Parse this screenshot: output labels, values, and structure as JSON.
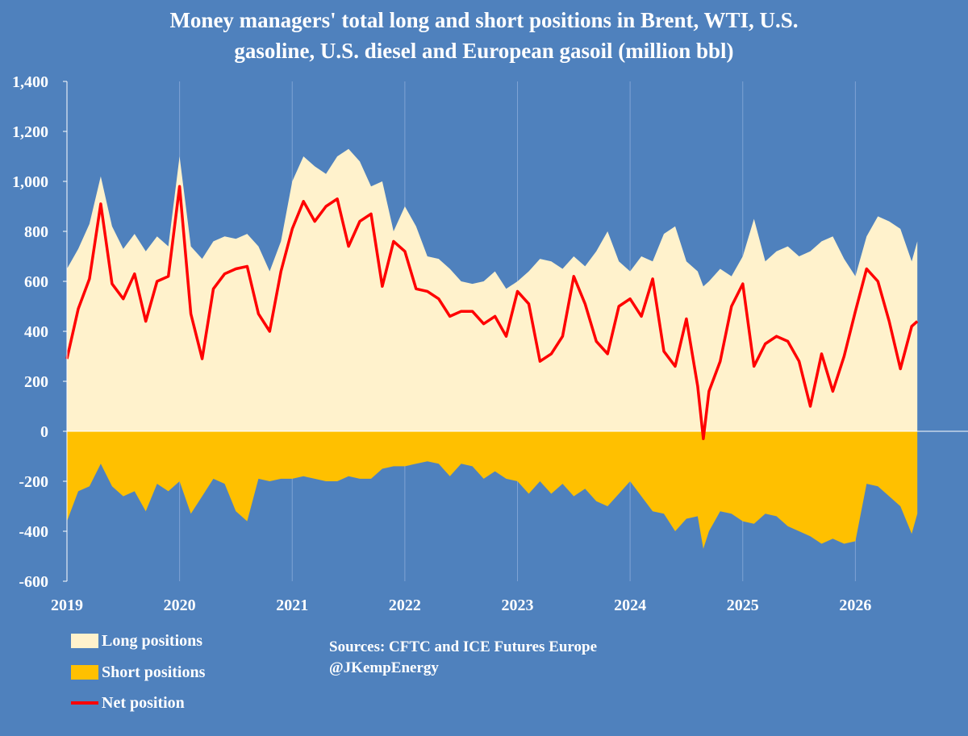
{
  "title_line1": "Money managers' total long and short positions in Brent, WTI, U.S.",
  "title_line2": "gasoline, U.S. diesel and European gasoil  (million bbl)",
  "legend": {
    "long_label": "Long positions",
    "short_label": "Short positions",
    "net_label": "Net position"
  },
  "source": {
    "line1": "Sources: CFTC and ICE Futures Europe",
    "line2": "@JKempEnergy"
  },
  "colors": {
    "background": "#4f81bd",
    "long": "#fff2cc",
    "short": "#ffc000",
    "net": "#ff0000",
    "grid": "#7fa3d4",
    "text": "#ffffff"
  },
  "chart_data": {
    "type": "area",
    "xlim": [
      2019,
      2027
    ],
    "ylim": [
      -600,
      1400
    ],
    "y_ticks": [
      1400,
      1200,
      1000,
      800,
      600,
      400,
      200,
      0,
      -200,
      -400,
      -600
    ],
    "y_tick_labels": [
      "1,400",
      "1,200",
      "1,000",
      "800",
      "600",
      "400",
      "200",
      "0",
      "-200",
      "-400",
      "-600"
    ],
    "x_ticks": [
      2019,
      2020,
      2021,
      2022,
      2023,
      2024,
      2025,
      2026
    ],
    "x_tick_labels": [
      "2019",
      "2020",
      "2021",
      "2022",
      "2023",
      "2024",
      "2025",
      "2026"
    ],
    "grid": "vertical only",
    "x": [
      2019.0,
      2019.1,
      2019.2,
      2019.3,
      2019.4,
      2019.5,
      2019.6,
      2019.7,
      2019.8,
      2019.9,
      2020.0,
      2020.1,
      2020.2,
      2020.3,
      2020.4,
      2020.5,
      2020.6,
      2020.7,
      2020.8,
      2020.9,
      2021.0,
      2021.1,
      2021.2,
      2021.3,
      2021.4,
      2021.5,
      2021.6,
      2021.7,
      2021.8,
      2021.9,
      2022.0,
      2022.1,
      2022.2,
      2022.3,
      2022.4,
      2022.5,
      2022.6,
      2022.7,
      2022.8,
      2022.9,
      2023.0,
      2023.1,
      2023.2,
      2023.3,
      2023.4,
      2023.5,
      2023.6,
      2023.7,
      2023.8,
      2023.9,
      2024.0,
      2024.1,
      2024.2,
      2024.3,
      2024.4,
      2024.5,
      2024.6,
      2024.65,
      2024.7,
      2024.8,
      2024.9,
      2025.0,
      2025.1,
      2025.2,
      2025.3,
      2025.4,
      2025.5,
      2025.6,
      2025.7,
      2025.8,
      2025.9,
      2026.0,
      2026.1,
      2026.2,
      2026.3,
      2026.4,
      2026.5,
      2026.55
    ],
    "series": [
      {
        "name": "Long positions",
        "values": [
          650,
          730,
          830,
          1020,
          820,
          730,
          790,
          720,
          780,
          740,
          1100,
          740,
          690,
          760,
          780,
          770,
          790,
          740,
          640,
          760,
          1000,
          1100,
          1060,
          1030,
          1100,
          1130,
          1080,
          980,
          1000,
          800,
          900,
          820,
          700,
          690,
          650,
          600,
          590,
          600,
          640,
          570,
          600,
          640,
          690,
          680,
          650,
          700,
          660,
          720,
          800,
          680,
          640,
          700,
          680,
          790,
          820,
          680,
          640,
          580,
          600,
          650,
          620,
          700,
          850,
          680,
          720,
          740,
          700,
          720,
          760,
          780,
          690,
          620,
          780,
          860,
          840,
          810,
          680,
          760
        ]
      },
      {
        "name": "Short positions",
        "values": [
          -360,
          -240,
          -220,
          -130,
          -220,
          -260,
          -240,
          -320,
          -210,
          -240,
          -200,
          -330,
          -260,
          -190,
          -210,
          -320,
          -360,
          -190,
          -200,
          -190,
          -190,
          -180,
          -190,
          -200,
          -200,
          -180,
          -190,
          -190,
          -150,
          -140,
          -140,
          -130,
          -120,
          -130,
          -180,
          -130,
          -140,
          -190,
          -160,
          -190,
          -200,
          -250,
          -200,
          -250,
          -210,
          -260,
          -230,
          -280,
          -300,
          -250,
          -200,
          -260,
          -320,
          -330,
          -400,
          -350,
          -340,
          -470,
          -400,
          -320,
          -330,
          -360,
          -370,
          -330,
          -340,
          -380,
          -400,
          -420,
          -450,
          -430,
          -450,
          -440,
          -210,
          -220,
          -260,
          -300,
          -410,
          -330
        ]
      },
      {
        "name": "Net position",
        "values": [
          290,
          490,
          610,
          910,
          590,
          530,
          630,
          440,
          600,
          620,
          980,
          470,
          290,
          570,
          630,
          650,
          660,
          470,
          400,
          640,
          810,
          920,
          840,
          900,
          930,
          740,
          840,
          870,
          580,
          760,
          720,
          570,
          560,
          530,
          460,
          480,
          480,
          430,
          460,
          380,
          560,
          510,
          280,
          310,
          380,
          620,
          510,
          360,
          310,
          500,
          530,
          460,
          610,
          320,
          260,
          450,
          180,
          -30,
          160,
          280,
          500,
          590,
          260,
          350,
          380,
          360,
          280,
          100,
          310,
          160,
          300,
          480,
          650,
          600,
          440,
          250,
          420,
          440
        ]
      }
    ]
  }
}
